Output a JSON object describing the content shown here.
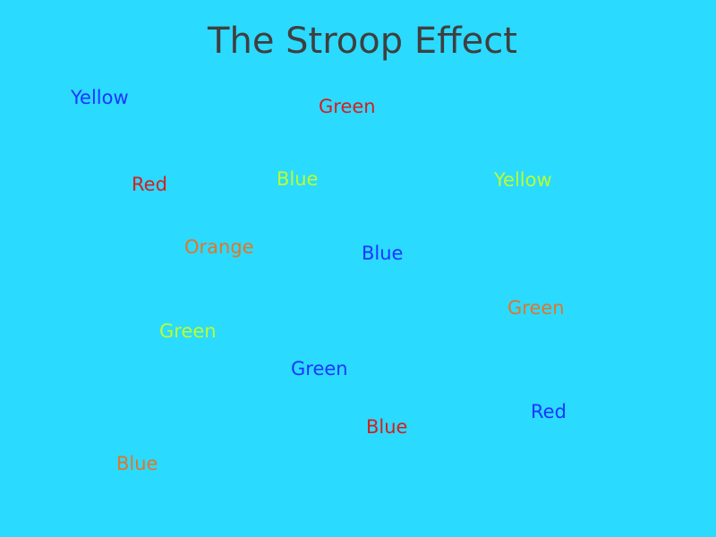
{
  "slide": {
    "title": "The Stroop Effect",
    "background_color": "#2bdaff",
    "title_color": "#3f3f3f"
  },
  "words": [
    {
      "text": "Yellow",
      "color": "#1a36ff"
    },
    {
      "text": "Green",
      "color": "#d41f1f"
    },
    {
      "text": "Red",
      "color": "#d41f1f"
    },
    {
      "text": "Blue",
      "color": "#b8ff2e"
    },
    {
      "text": "Yellow",
      "color": "#b8ff2e"
    },
    {
      "text": "Orange",
      "color": "#e0762a"
    },
    {
      "text": "Blue",
      "color": "#1a36ff"
    },
    {
      "text": "Green",
      "color": "#e0762a"
    },
    {
      "text": "Green",
      "color": "#b8ff2e"
    },
    {
      "text": "Green",
      "color": "#1a36ff"
    },
    {
      "text": "Red",
      "color": "#1a36ff"
    },
    {
      "text": "Blue",
      "color": "#d41f1f"
    },
    {
      "text": "Blue",
      "color": "#e0762a"
    }
  ]
}
